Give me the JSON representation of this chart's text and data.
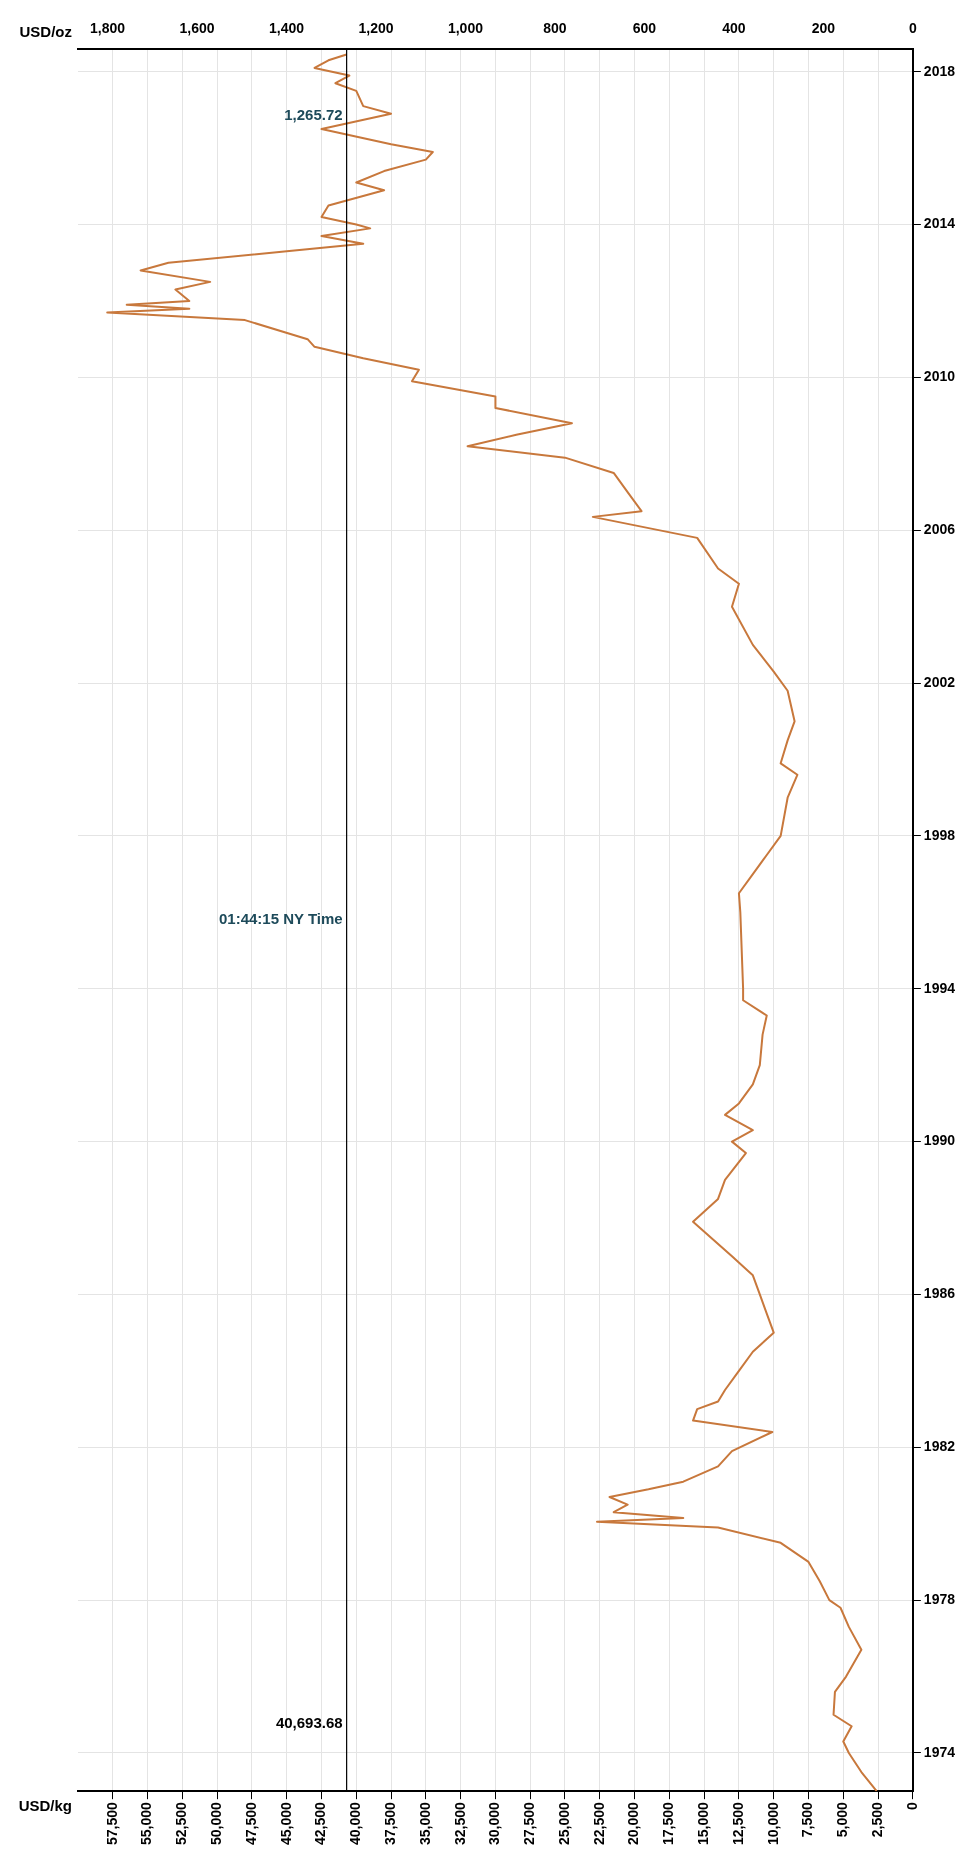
{
  "chart_data": {
    "type": "line",
    "xlabel": "USD/kg",
    "x2label": "USD/oz",
    "annotations": [
      "01:44:15 NY Time",
      "1,265.72"
    ],
    "series": [
      {
        "color": "#c8783c",
        "x": [
          2600,
          3700,
          4600,
          5000,
          4400,
          5700,
          5600,
          4800,
          3700,
          4600,
          5200,
          6000,
          6700,
          7500,
          9500,
          14000,
          22700,
          16500,
          21500,
          20500,
          21800,
          19000,
          16500,
          14000,
          13000,
          10100,
          15800,
          15500,
          14000,
          13500,
          12500,
          11500,
          10000,
          10500,
          11000,
          11500,
          13000,
          15800,
          14000,
          13500,
          12000,
          13000,
          11500,
          13500,
          12500,
          11500,
          11000,
          10800,
          10500,
          12200,
          12200,
          12300,
          12400,
          12500,
          11500,
          10500,
          9500,
          9000,
          8300,
          9500,
          9000,
          8500,
          9000,
          10000,
          11500,
          13000,
          12500,
          14000,
          15500,
          23000,
          19500,
          20500,
          21500,
          25000,
          32000,
          28500,
          24500,
          30000,
          30000,
          36000,
          35500,
          39500,
          43000,
          43500,
          48000,
          57900,
          52000,
          56500,
          52000,
          53000,
          50500,
          55500,
          53500,
          45000,
          39500,
          42500,
          39000,
          40000,
          42500,
          42000,
          38000,
          40000,
          38000,
          35000,
          34500,
          37500,
          42500,
          37500,
          39500,
          40000,
          41500,
          40500,
          43000,
          42000,
          40700
        ],
        "values": [
          1973.0,
          1973.5,
          1974.0,
          1974.3,
          1974.7,
          1975.0,
          1975.6,
          1976.0,
          1976.7,
          1977.3,
          1977.8,
          1978.0,
          1978.5,
          1979.0,
          1979.5,
          1979.9,
          1980.05,
          1980.15,
          1980.3,
          1980.5,
          1980.7,
          1980.9,
          1981.1,
          1981.5,
          1981.9,
          1982.4,
          1982.7,
          1983.0,
          1983.2,
          1983.5,
          1984.0,
          1984.5,
          1985.0,
          1985.5,
          1986.0,
          1986.5,
          1987.0,
          1987.9,
          1988.5,
          1989.0,
          1989.7,
          1990.0,
          1990.3,
          1990.7,
          1991.0,
          1991.5,
          1992.0,
          1992.8,
          1993.3,
          1993.7,
          1994.0,
          1995.0,
          1996.0,
          1996.5,
          1997.0,
          1997.5,
          1998.0,
          1999.0,
          1999.6,
          1999.9,
          2000.5,
          2001.0,
          2001.8,
          2002.3,
          2003.0,
          2004.0,
          2004.6,
          2005.0,
          2005.8,
          2006.35,
          2006.5,
          2007.0,
          2007.5,
          2007.9,
          2008.2,
          2008.5,
          2008.8,
          2009.2,
          2009.5,
          2009.9,
          2010.2,
          2010.5,
          2010.8,
          2011.0,
          2011.5,
          2011.7,
          2011.8,
          2011.9,
          2012.0,
          2012.3,
          2012.5,
          2012.8,
          2013.0,
          2013.3,
          2013.5,
          2013.7,
          2013.9,
          2014.0,
          2014.2,
          2014.5,
          2014.9,
          2015.1,
          2015.4,
          2015.7,
          2015.9,
          2016.1,
          2016.5,
          2016.9,
          2017.1,
          2017.5,
          2017.7,
          2017.9,
          2018.1,
          2018.3,
          2018.45
        ]
      }
    ],
    "ylim": [
      1973.0,
      2018.6
    ],
    "yticks": [
      1974,
      1978,
      1982,
      1986,
      1990,
      1994,
      1998,
      2002,
      2006,
      2010,
      2014,
      2018
    ],
    "xlim": [
      60000,
      0
    ],
    "xticks": [
      {
        "value": 0,
        "label": "0"
      },
      {
        "value": 2500,
        "label": "2,500"
      },
      {
        "value": 5000,
        "label": "5,000"
      },
      {
        "value": 7500,
        "label": "7,500"
      },
      {
        "value": 10000,
        "label": "10,000"
      },
      {
        "value": 12500,
        "label": "12,500"
      },
      {
        "value": 15000,
        "label": "15,000"
      },
      {
        "value": 17500,
        "label": "17,500"
      },
      {
        "value": 20000,
        "label": "20,000"
      },
      {
        "value": 22500,
        "label": "22,500"
      },
      {
        "value": 25000,
        "label": "25,000"
      },
      {
        "value": 27500,
        "label": "27,500"
      },
      {
        "value": 30000,
        "label": "30,000"
      },
      {
        "value": 32500,
        "label": "32,500"
      },
      {
        "value": 35000,
        "label": "35,000"
      },
      {
        "value": 37500,
        "label": "37,500"
      },
      {
        "value": 40000,
        "label": "40,000"
      },
      {
        "value": 42500,
        "label": "42,500"
      },
      {
        "value": 45000,
        "label": "45,000"
      },
      {
        "value": 47500,
        "label": "47,500"
      },
      {
        "value": 50000,
        "label": "50,000"
      },
      {
        "value": 52500,
        "label": "52,500"
      },
      {
        "value": 55000,
        "label": "55,000"
      },
      {
        "value": 57500,
        "label": "57,500"
      }
    ],
    "x2lim": [
      1866,
      0
    ],
    "x2ticks": [
      0,
      200,
      400,
      600,
      800,
      {
        "value": 1000,
        "label": "1,000"
      },
      {
        "value": 1200,
        "label": "1,200"
      },
      {
        "value": 1400,
        "label": "1,400"
      },
      {
        "value": 1600,
        "label": "1,600"
      },
      {
        "value": 1800,
        "label": "1,800"
      }
    ],
    "ref_lines": [
      {
        "axis": "x",
        "value": 40693.68,
        "label": "40,693.68",
        "color": "#000000"
      }
    ],
    "grid": true,
    "legend": false,
    "marker": "none",
    "line_style": "solid"
  }
}
